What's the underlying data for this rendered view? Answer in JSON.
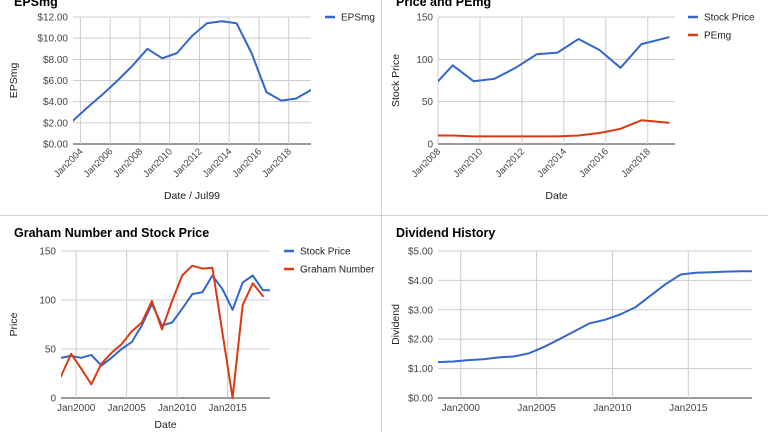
{
  "chart_data": [
    {
      "type": "line",
      "title": "EPSmg",
      "xlabel": "Date / Jul99",
      "ylabel": "EPSmg",
      "ylim": [
        0,
        12
      ],
      "yticks": [
        "$0.00",
        "$2.00",
        "$4.00",
        "$6.00",
        "$8.00",
        "$10.00",
        "$12.00"
      ],
      "x_min": 2003.5,
      "x_max": 2019.5,
      "xticks": [
        2004,
        2006,
        2008,
        2010,
        2012,
        2014,
        2016,
        2018
      ],
      "xtick_labels": [
        "Jan2004",
        "Jan2006",
        "Jan2008",
        "Jan2010",
        "Jan2012",
        "Jan2014",
        "Jan2016",
        "Jan2018"
      ],
      "grid": true,
      "legend_position": "top-right",
      "series": [
        {
          "name": "EPSmg",
          "color": "#3366cc",
          "x": [
            2003.5,
            2004.5,
            2005.5,
            2006.5,
            2007.5,
            2008.5,
            2009.5,
            2010.5,
            2011.5,
            2012.5,
            2013.5,
            2014.5,
            2015.5,
            2016.5,
            2017.5,
            2018.5,
            2019.5
          ],
          "y": [
            2.2,
            3.5,
            4.7,
            6.0,
            7.4,
            9.0,
            8.1,
            8.6,
            10.2,
            11.4,
            11.6,
            11.4,
            8.6,
            4.9,
            4.1,
            4.3,
            5.1
          ]
        }
      ]
    },
    {
      "type": "line",
      "title": "Price and PEmg",
      "xlabel": "Date",
      "ylabel": "Stock Price",
      "ylim": [
        0,
        150
      ],
      "yticks": [
        "0",
        "50",
        "100",
        "150"
      ],
      "x_min": 2008,
      "x_max": 2019.3,
      "xticks": [
        2008,
        2010,
        2012,
        2014,
        2016,
        2018
      ],
      "xtick_labels": [
        "Jan2008",
        "Jan2010",
        "Jan2012",
        "Jan2014",
        "Jan2016",
        "Jan2018"
      ],
      "grid": true,
      "legend_position": "top-right",
      "series": [
        {
          "name": "Stock Price",
          "color": "#3366cc",
          "x": [
            2008,
            2008.7,
            2009.7,
            2010.7,
            2011.7,
            2012.7,
            2013.7,
            2014.7,
            2015.7,
            2016.7,
            2017.7,
            2019
          ],
          "y": [
            74,
            93,
            74,
            77,
            90,
            106,
            108,
            124,
            111,
            90,
            118,
            126
          ]
        },
        {
          "name": "PEmg",
          "color": "#dc3912",
          "x": [
            2008,
            2008.7,
            2009.7,
            2010.7,
            2011.7,
            2012.7,
            2013.7,
            2014.7,
            2015.7,
            2016.7,
            2017.7,
            2019
          ],
          "y": [
            10,
            10,
            9,
            9,
            9,
            9,
            9,
            10,
            13,
            18,
            28,
            25
          ]
        }
      ]
    },
    {
      "type": "line",
      "title": "Graham Number and Stock Price",
      "xlabel": "Date",
      "ylabel": "Price",
      "ylim": [
        0,
        150
      ],
      "yticks": [
        "0",
        "50",
        "100",
        "150"
      ],
      "x_min": 1998.5,
      "x_max": 2019.2,
      "xticks": [
        2000,
        2005,
        2010,
        2015
      ],
      "xtick_labels": [
        "Jan2000",
        "Jan2005",
        "Jan2010",
        "Jan2015"
      ],
      "grid": true,
      "legend_position": "top-right",
      "series": [
        {
          "name": "Stock Price",
          "color": "#3366cc",
          "x": [
            1998.5,
            1999.5,
            2000.5,
            2001.5,
            2002.5,
            2003.5,
            2004.5,
            2005.5,
            2006.5,
            2007.5,
            2008.5,
            2009.5,
            2010.5,
            2011.5,
            2012.5,
            2013.5,
            2014.5,
            2015.5,
            2016.5,
            2017.5,
            2018.5,
            2019.2
          ],
          "y": [
            41,
            43,
            41,
            44,
            33,
            41,
            50,
            57,
            74,
            96,
            74,
            77,
            91,
            106,
            108,
            125,
            111,
            90,
            118,
            125,
            110,
            110
          ]
        },
        {
          "name": "Graham Number",
          "color": "#dc3912",
          "x": [
            1998.5,
            1999.5,
            2000.5,
            2001.5,
            2002.5,
            2003.5,
            2004.5,
            2005.5,
            2006.5,
            2007.5,
            2008.5,
            2009.5,
            2010.5,
            2011.5,
            2012.5,
            2013.5,
            2014.5,
            2015.5,
            2016.5,
            2017.5,
            2018.5
          ],
          "y": [
            22,
            45,
            30,
            14,
            35,
            46,
            55,
            68,
            77,
            99,
            70,
            99,
            125,
            135,
            132,
            133,
            66,
            0,
            95,
            117,
            104
          ]
        }
      ]
    },
    {
      "type": "line",
      "title": "Dividend History",
      "xlabel": "",
      "ylabel": "Dividend",
      "ylim": [
        0,
        5
      ],
      "yticks": [
        "$0.00",
        "$1.00",
        "$2.00",
        "$3.00",
        "$4.00",
        "$5.00"
      ],
      "x_min": 1998.5,
      "x_max": 2019.2,
      "xticks": [
        2000,
        2005,
        2010,
        2015
      ],
      "xtick_labels": [
        "Jan2000",
        "Jan2005",
        "Jan2010",
        "Jan2015"
      ],
      "grid": true,
      "legend_position": "none",
      "series": [
        {
          "name": "",
          "color": "#3366cc",
          "x": [
            1998.5,
            1999.5,
            2000.5,
            2001.5,
            2002.5,
            2003.5,
            2004.5,
            2005.5,
            2006.5,
            2007.5,
            2008.5,
            2009.5,
            2010.5,
            2011.5,
            2012.5,
            2013.5,
            2014.5,
            2015.5,
            2016.5,
            2017.5,
            2018.5,
            2019.2
          ],
          "y": [
            1.22,
            1.24,
            1.29,
            1.32,
            1.38,
            1.41,
            1.52,
            1.74,
            2.0,
            2.27,
            2.54,
            2.66,
            2.84,
            3.08,
            3.48,
            3.87,
            4.2,
            4.26,
            4.28,
            4.3,
            4.31,
            4.31
          ]
        }
      ]
    }
  ]
}
